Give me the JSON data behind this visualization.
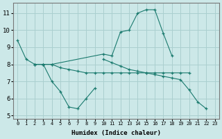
{
  "xlabel": "Humidex (Indice chaleur)",
  "color": "#1a7a6e",
  "bg_color": "#cce8e8",
  "grid_color": "#aacfcf",
  "ylim": [
    4.8,
    11.6
  ],
  "xlim": [
    -0.5,
    23.5
  ],
  "yticks": [
    5,
    6,
    7,
    8,
    9,
    10,
    11
  ],
  "xticks": [
    0,
    1,
    2,
    3,
    4,
    5,
    6,
    7,
    8,
    9,
    10,
    11,
    12,
    13,
    14,
    15,
    16,
    17,
    18,
    19,
    20,
    21,
    22,
    23
  ],
  "lineA_x": [
    0,
    1,
    2,
    3,
    4,
    10,
    11,
    12,
    13,
    14,
    15,
    16,
    17,
    18
  ],
  "lineA_y": [
    9.4,
    8.3,
    8.0,
    8.0,
    8.0,
    8.6,
    8.5,
    9.9,
    10.0,
    11.0,
    11.2,
    11.2,
    9.8,
    8.5
  ],
  "lineB_x": [
    2,
    3,
    4,
    5,
    6,
    7,
    8,
    9,
    10,
    11,
    12,
    13,
    14,
    15,
    16,
    17,
    18,
    19,
    20
  ],
  "lineB_y": [
    8.0,
    8.0,
    8.0,
    7.8,
    7.7,
    7.6,
    7.5,
    7.5,
    7.5,
    7.5,
    7.5,
    7.5,
    7.5,
    7.5,
    7.5,
    7.5,
    7.5,
    7.5,
    7.5
  ],
  "lineC_x": [
    2,
    3,
    4,
    5,
    6,
    7,
    8,
    9
  ],
  "lineC_y": [
    8.0,
    8.0,
    7.0,
    6.4,
    5.5,
    5.4,
    6.0,
    6.6
  ],
  "lineD_x": [
    10,
    11,
    12,
    13,
    14,
    15,
    16,
    17,
    18,
    19,
    20,
    21,
    22,
    23
  ],
  "lineD_y": [
    8.3,
    8.1,
    7.9,
    7.7,
    7.6,
    7.5,
    7.4,
    7.3,
    7.2,
    7.1,
    6.5,
    5.8,
    5.4,
    null
  ]
}
